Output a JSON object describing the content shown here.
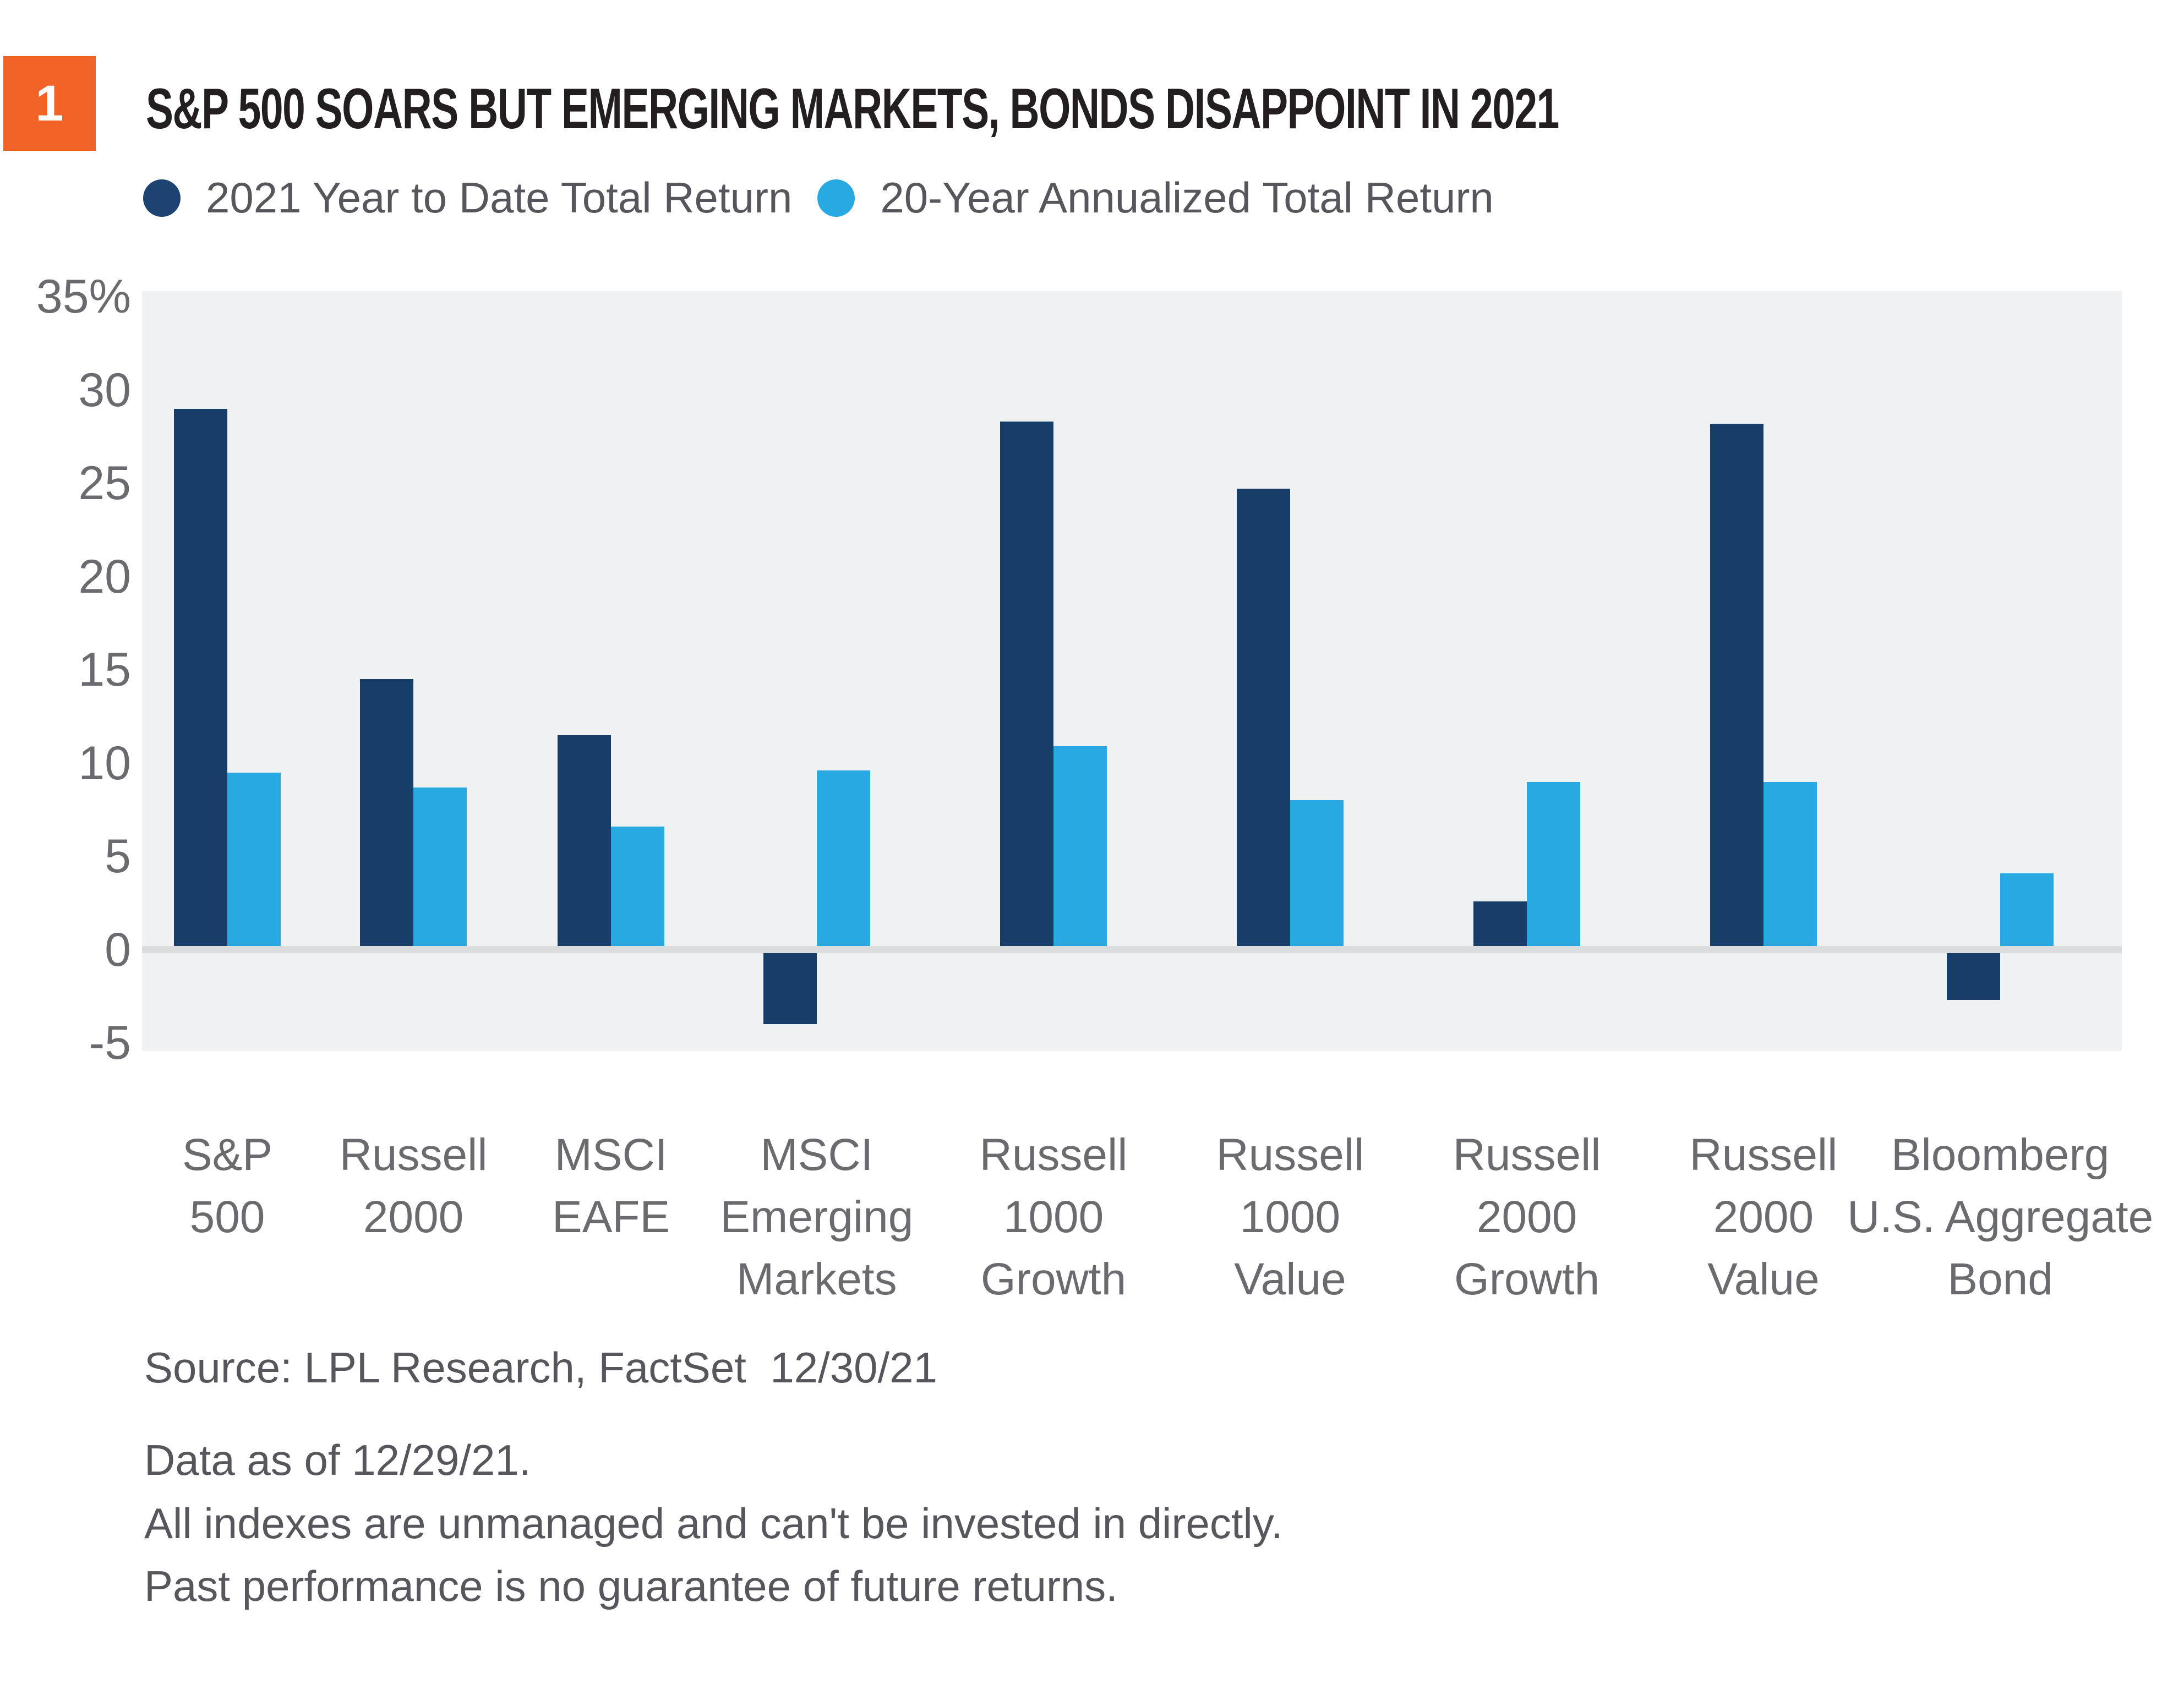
{
  "badge": {
    "number": "1",
    "color": "#F26327"
  },
  "title": "S&P 500 SOARS BUT EMERGING MARKETS, BONDS DISAPPOINT IN 2021",
  "legend": [
    {
      "label": "2021 Year to Date Total Return",
      "color": "#1D4373"
    },
    {
      "label": "20-Year Annualized Total Return",
      "color": "#28A9E1"
    }
  ],
  "chart_data": {
    "type": "bar",
    "title": "S&P 500 SOARS BUT EMERGING MARKETS, BONDS DISAPPOINT IN 2021",
    "categories": [
      "S&P 500",
      "Russell 2000",
      "MSCI EAFE",
      "MSCI Emerging Markets",
      "Russell 1000 Growth",
      "Russell 1000 Value",
      "Russell 2000 Growth",
      "Russell 2000 Value",
      "Bloomberg U.S. Aggregate Bond"
    ],
    "category_label_lines": [
      [
        "S&P",
        "500"
      ],
      [
        "Russell",
        "2000"
      ],
      [
        "MSCI",
        "EAFE"
      ],
      [
        "MSCI",
        "Emerging",
        "Markets"
      ],
      [
        "Russell",
        "1000",
        "Growth"
      ],
      [
        "Russell",
        "1000",
        "Value"
      ],
      [
        "Russell",
        "2000",
        "Growth"
      ],
      [
        "Russell",
        "2000",
        "Value"
      ],
      [
        "Bloomberg",
        "U.S. Aggregate",
        "Bond"
      ]
    ],
    "series": [
      {
        "name": "2021 Year to Date Total Return",
        "color": "#173D69",
        "values": [
          29.0,
          14.5,
          11.5,
          -4.0,
          28.3,
          24.7,
          2.6,
          28.2,
          -2.7
        ]
      },
      {
        "name": "20-Year Annualized Total Return",
        "color": "#28A9E1",
        "values": [
          9.5,
          8.7,
          6.6,
          9.6,
          10.9,
          8.0,
          9.0,
          9.0,
          4.1
        ]
      }
    ],
    "xlabel": "",
    "ylabel": "",
    "yticks": [
      35,
      30,
      25,
      20,
      15,
      10,
      5,
      0,
      -5
    ],
    "ytick_labels": [
      "35%",
      "30",
      "25",
      "20",
      "15",
      "10",
      "5",
      "0",
      "-5"
    ],
    "ylim": [
      -5.4,
      35.3
    ],
    "grid": false,
    "legend_position": "top",
    "plot_background": "#F0F1F3",
    "zero_line_color": "#DADCDD"
  },
  "footer": {
    "source": "Source: LPL Research, FactSet  12/30/21",
    "notes": [
      "Data as of 12/29/21.",
      "All indexes are unmanaged and can't be invested in directly.",
      "Past performance is no guarantee of future returns."
    ]
  }
}
